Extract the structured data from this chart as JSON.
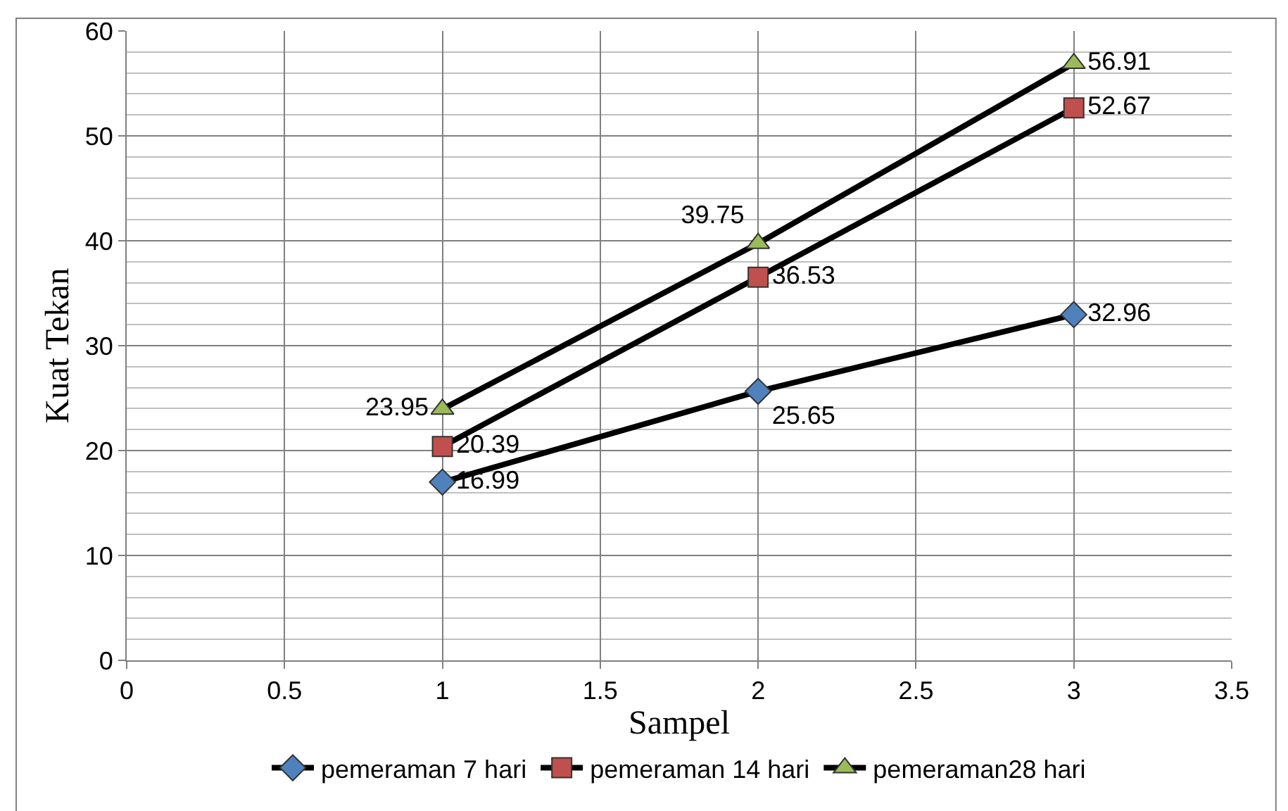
{
  "chart_data": {
    "type": "line",
    "xlabel": "Sampel",
    "ylabel": "Kuat Tekan",
    "x": [
      1,
      2,
      3
    ],
    "series": [
      {
        "name": "pemeraman 7 hari",
        "color": "#4f81bd",
        "marker": "diamond",
        "values": [
          16.99,
          25.65,
          32.96
        ]
      },
      {
        "name": "pemeraman 14 hari",
        "color": "#c0504d",
        "marker": "square",
        "values": [
          20.39,
          36.53,
          52.67
        ]
      },
      {
        "name": "pemeraman28 hari",
        "color": "#9bbb59",
        "marker": "triangle",
        "values": [
          23.95,
          39.75,
          56.91
        ]
      }
    ],
    "xlim": [
      0,
      3.5
    ],
    "xticks": [
      0,
      0.5,
      1,
      1.5,
      2,
      2.5,
      3,
      3.5
    ],
    "ylim": [
      0,
      60
    ],
    "yticks": [
      0,
      10,
      20,
      30,
      40,
      50,
      60
    ],
    "grid": true,
    "legend": "bottom",
    "data_labels": true,
    "line_style": "solid"
  }
}
